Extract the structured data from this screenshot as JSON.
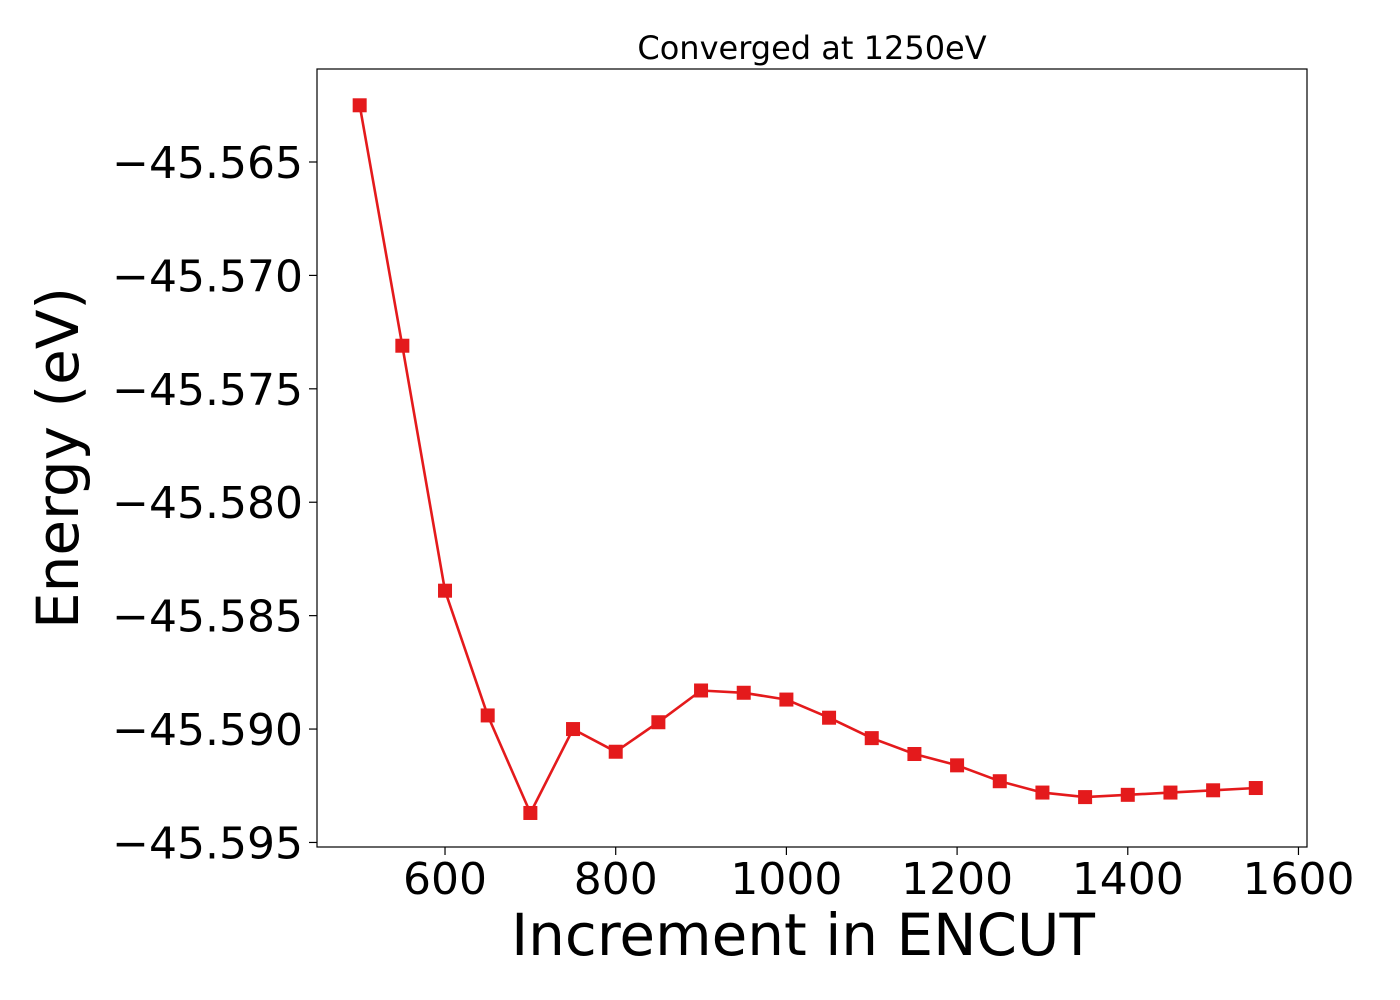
{
  "chart_data": {
    "type": "line",
    "title": "Converged at 1250eV",
    "xlabel": "Increment in ENCUT",
    "ylabel": "Energy (eV)",
    "xlim": [
      450,
      1610
    ],
    "ylim": [
      -45.5952,
      -45.5609
    ],
    "xticks": [
      600,
      800,
      1000,
      1200,
      1400,
      1600
    ],
    "xtick_labels": [
      "600",
      "800",
      "1000",
      "1200",
      "1400",
      "1600"
    ],
    "yticks": [
      -45.565,
      -45.57,
      -45.575,
      -45.58,
      -45.585,
      -45.59,
      -45.595
    ],
    "ytick_labels": [
      "−45.565",
      "−45.570",
      "−45.575",
      "−45.580",
      "−45.585",
      "−45.590",
      "−45.595"
    ],
    "grid": false,
    "marker": "square",
    "color": "#e41a1c",
    "series": [
      {
        "x": [
          500,
          550,
          600,
          650,
          700,
          750,
          800,
          850,
          900,
          950,
          1000,
          1050,
          1100,
          1150,
          1200,
          1250,
          1300,
          1350,
          1400,
          1450,
          1500,
          1550
        ],
        "y": [
          -45.5625,
          -45.5731,
          -45.5839,
          -45.5894,
          -45.5937,
          -45.59,
          -45.591,
          -45.5897,
          -45.5883,
          -45.5884,
          -45.5887,
          -45.5895,
          -45.5904,
          -45.5911,
          -45.5916,
          -45.5923,
          -45.5928,
          -45.593,
          -45.5929,
          -45.5928,
          -45.5927,
          -45.5926
        ]
      }
    ]
  }
}
